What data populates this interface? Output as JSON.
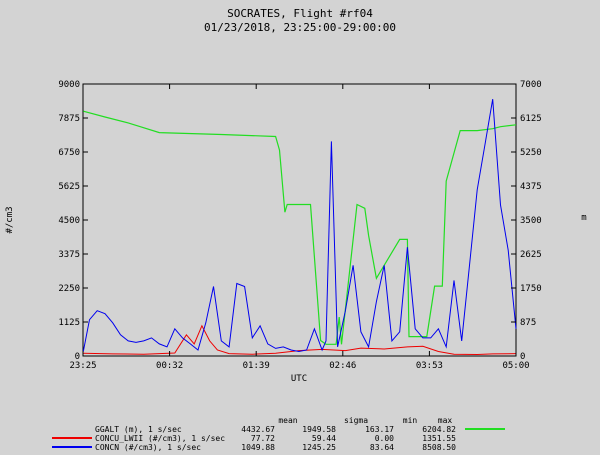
{
  "title": "SOCRATES, Flight #rf04",
  "subtitle": "01/23/2018, 23:25:00-29:00:00",
  "colors": {
    "background": "#d3d3d3",
    "GGALT": "#22dd22",
    "CONCU_LWII": "#ee0000",
    "CONCN": "#0000ee"
  },
  "chart_data": {
    "type": "line",
    "title": "SOCRATES, Flight #rf04",
    "subtitle": "01/23/2018, 23:25:00-29:00:00",
    "xlabel": "UTC",
    "ylabel_left": "#/cm3",
    "ylabel_right": "m",
    "x_ticks": [
      "23:25",
      "00:32",
      "01:39",
      "02:46",
      "03:53",
      "05:00"
    ],
    "x_tick_hours": [
      23.4167,
      24.5333,
      25.65,
      26.7667,
      27.8833,
      29.0
    ],
    "xlim": [
      23.4167,
      29.0
    ],
    "ylim_left": [
      0,
      9000
    ],
    "ylim_right": [
      0,
      7000
    ],
    "y_ticks_left": [
      "0",
      "1125",
      "2250",
      "3375",
      "4500",
      "5625",
      "6750",
      "7875",
      "9000"
    ],
    "y_ticks_right": [
      "0",
      "875",
      "1750",
      "2625",
      "3500",
      "4375",
      "5250",
      "6125",
      "7000"
    ],
    "stats_header": [
      "mean",
      "sigma",
      "min",
      "max"
    ],
    "series": [
      {
        "name": "GGALT (m), 1 s/sec",
        "axis": "right",
        "stats": [
          "4432.67",
          "1949.58",
          "163.17",
          "6204.82"
        ],
        "x": [
          23.42,
          23.7,
          24.0,
          24.4,
          25.2,
          25.9,
          25.95,
          26.02,
          26.05,
          26.35,
          26.48,
          26.55,
          26.68,
          26.72,
          26.75,
          26.95,
          27.05,
          27.1,
          27.2,
          27.5,
          27.6,
          27.62,
          27.85,
          27.95,
          28.05,
          28.1,
          28.28,
          28.5,
          28.7,
          28.8,
          29.0
        ],
        "y": [
          6300,
          6150,
          6000,
          5750,
          5700,
          5650,
          5300,
          3700,
          3900,
          3900,
          400,
          300,
          300,
          1000,
          300,
          3900,
          3800,
          3100,
          2000,
          3000,
          3000,
          500,
          500,
          1800,
          1800,
          4500,
          5800,
          5800,
          5850,
          5900,
          5950
        ]
      },
      {
        "name": "CONCU_LWII (#/cm3), 1 s/sec",
        "axis": "left",
        "stats": [
          "77.72",
          "59.44",
          "0.00",
          "1351.55"
        ],
        "x": [
          23.42,
          23.8,
          24.2,
          24.6,
          24.75,
          24.85,
          24.95,
          25.05,
          25.15,
          25.3,
          25.6,
          25.9,
          26.2,
          26.5,
          26.8,
          27.0,
          27.3,
          27.6,
          27.8,
          28.0,
          28.2,
          28.5,
          28.7,
          29.0
        ],
        "y": [
          90,
          70,
          60,
          100,
          700,
          400,
          1000,
          500,
          200,
          80,
          60,
          90,
          180,
          220,
          180,
          260,
          230,
          300,
          320,
          150,
          60,
          50,
          70,
          80
        ]
      },
      {
        "name": "CONCN (#/cm3), 1 s/sec",
        "axis": "left",
        "stats": [
          "1049.88",
          "1245.25",
          "83.64",
          "8508.50"
        ],
        "x": [
          23.42,
          23.5,
          23.6,
          23.7,
          23.8,
          23.9,
          24.0,
          24.1,
          24.2,
          24.3,
          24.4,
          24.5,
          24.6,
          24.7,
          24.8,
          24.9,
          25.0,
          25.1,
          25.2,
          25.3,
          25.4,
          25.5,
          25.6,
          25.7,
          25.8,
          25.9,
          26.0,
          26.1,
          26.2,
          26.3,
          26.4,
          26.5,
          26.55,
          26.62,
          26.7,
          26.8,
          26.9,
          27.0,
          27.1,
          27.2,
          27.3,
          27.4,
          27.5,
          27.6,
          27.7,
          27.8,
          27.9,
          28.0,
          28.1,
          28.2,
          28.3,
          28.4,
          28.5,
          28.6,
          28.7,
          28.8,
          28.9,
          29.0
        ],
        "y": [
          150,
          1200,
          1500,
          1400,
          1100,
          700,
          500,
          450,
          500,
          600,
          400,
          300,
          900,
          600,
          400,
          200,
          1100,
          2300,
          500,
          300,
          2400,
          2300,
          600,
          1000,
          400,
          250,
          300,
          200,
          150,
          200,
          900,
          200,
          500,
          7100,
          300,
          1500,
          3000,
          800,
          300,
          1800,
          3000,
          500,
          800,
          3600,
          900,
          600,
          600,
          900,
          300,
          2500,
          500,
          3000,
          5500,
          7000,
          8500,
          5000,
          3500,
          900
        ]
      }
    ]
  }
}
